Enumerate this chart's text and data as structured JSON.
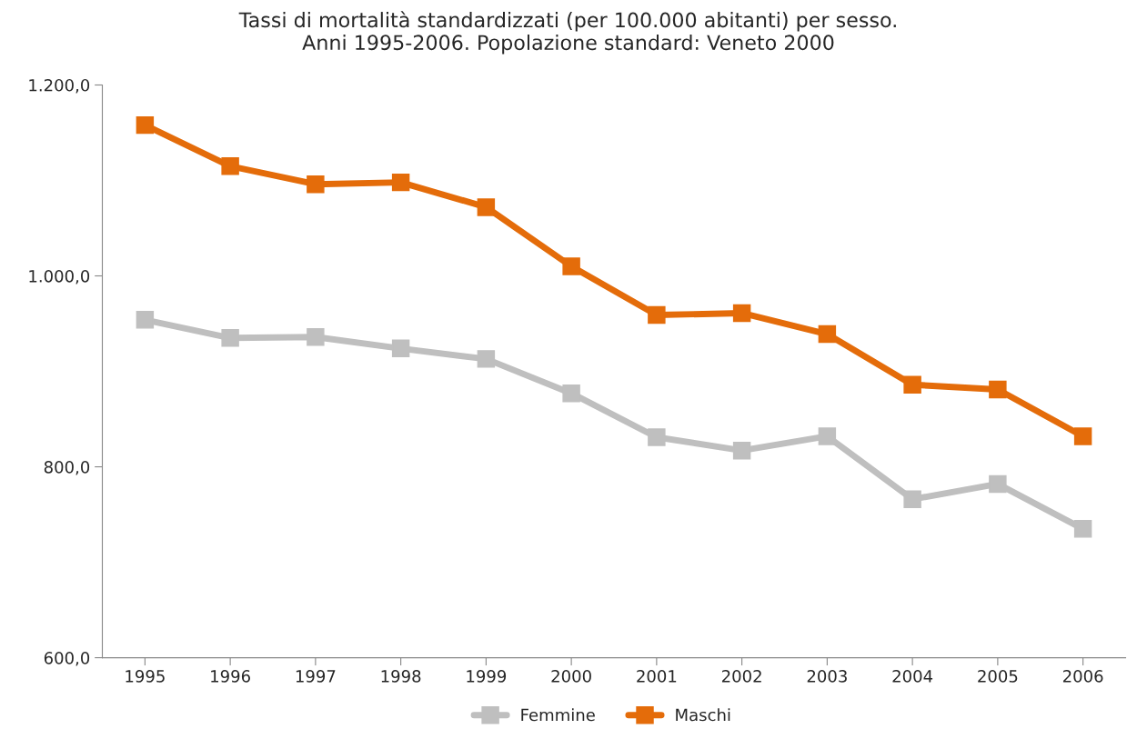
{
  "chart_data": {
    "type": "line",
    "title": "Tassi di mortalità standardizzati (per 100.000 abitanti) per sesso.\nAnni 1995-2006. Popolazione standard: Veneto 2000",
    "categories": [
      "1995",
      "1996",
      "1997",
      "1998",
      "1999",
      "2000",
      "2001",
      "2002",
      "2003",
      "2004",
      "2005",
      "2006"
    ],
    "series": [
      {
        "name": "Femmine",
        "color": "#bfbfbf",
        "values": [
          954,
          935,
          936,
          924,
          913,
          877,
          831,
          817,
          832,
          766,
          782,
          735
        ]
      },
      {
        "name": "Maschi",
        "color": "#e46c0a",
        "values": [
          1158,
          1115,
          1096,
          1098,
          1072,
          1010,
          959,
          961,
          939,
          886,
          881,
          832
        ]
      }
    ],
    "ylim": [
      600,
      1200
    ],
    "yticks": [
      {
        "value": 600,
        "label": "600,0"
      },
      {
        "value": 800,
        "label": "800,0"
      },
      {
        "value": 1000,
        "label": "1.000,0"
      },
      {
        "value": 1200,
        "label": "1.200,0"
      }
    ],
    "grid": false,
    "legend": "bottom",
    "marker": "square",
    "line_style": "solid"
  }
}
